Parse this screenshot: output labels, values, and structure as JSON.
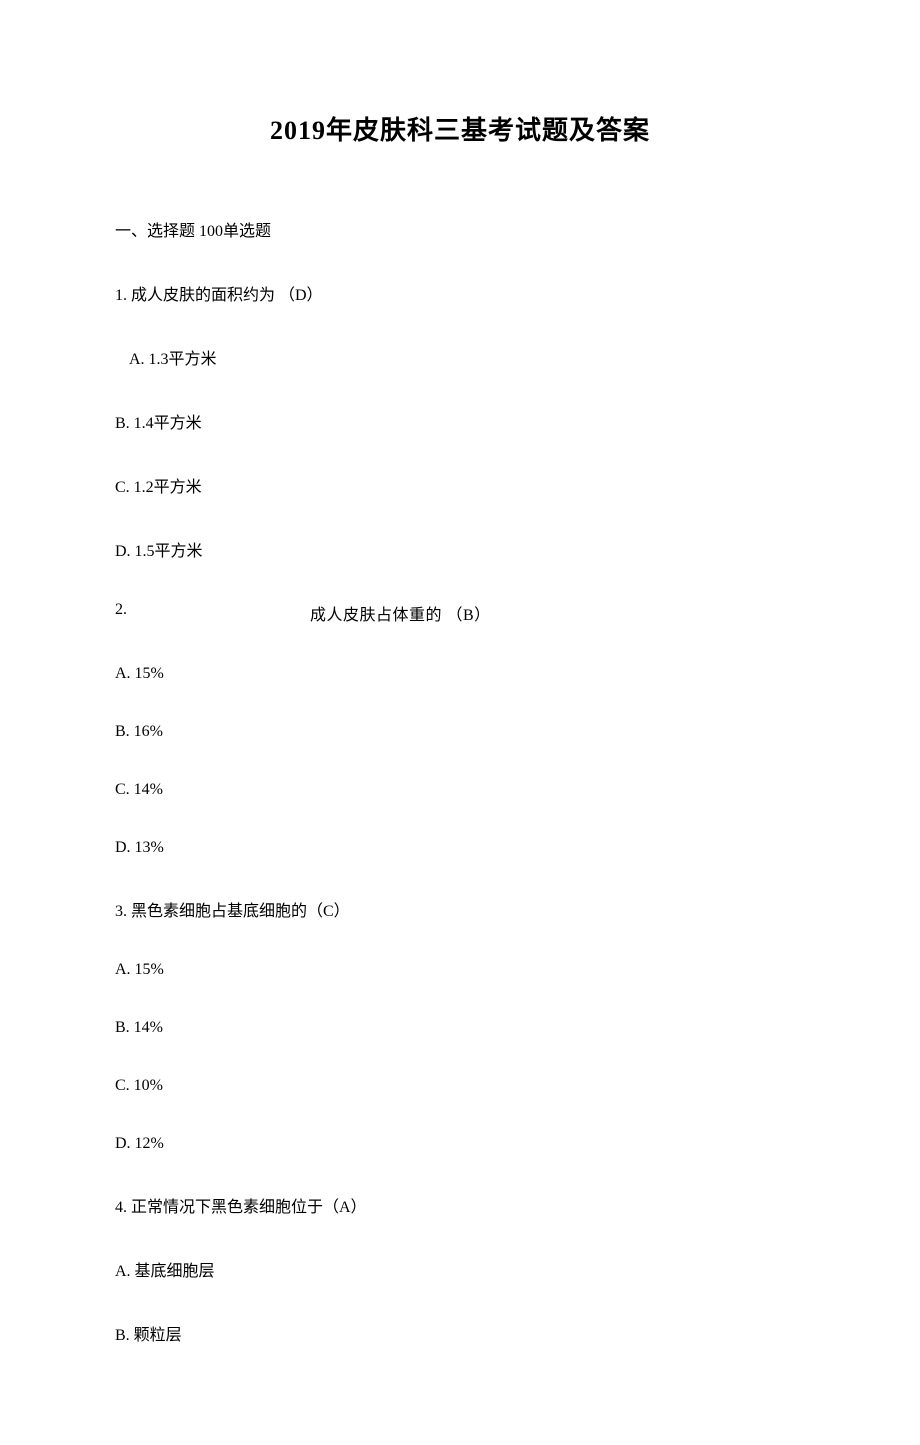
{
  "title": "2019年皮肤科三基考试题及答案",
  "section_header": "一、选择题 100单选题",
  "q1": {
    "stem": "1. 成人皮肤的面积约为  （D）",
    "a": "A. 1.3平方米",
    "b": "B. 1.4平方米",
    "c": "C. 1.2平方米",
    "d": "D. 1.5平方米"
  },
  "q2": {
    "num": "2.",
    "stem": "成人皮肤占体重的  （B）",
    "a": "A. 15%",
    "b": "B. 16%",
    "c": "C. 14%",
    "d": "D. 13%"
  },
  "q3": {
    "stem": "3. 黑色素细胞占基底细胞的（C）",
    "a": "A. 15%",
    "b": "B. 14%",
    "c": "C. 10%",
    "d": "D. 12%"
  },
  "q4": {
    "stem": "4. 正常情况下黑色素细胞位于（A）",
    "a": "A. 基底细胞层",
    "b": "B. 颗粒层"
  }
}
